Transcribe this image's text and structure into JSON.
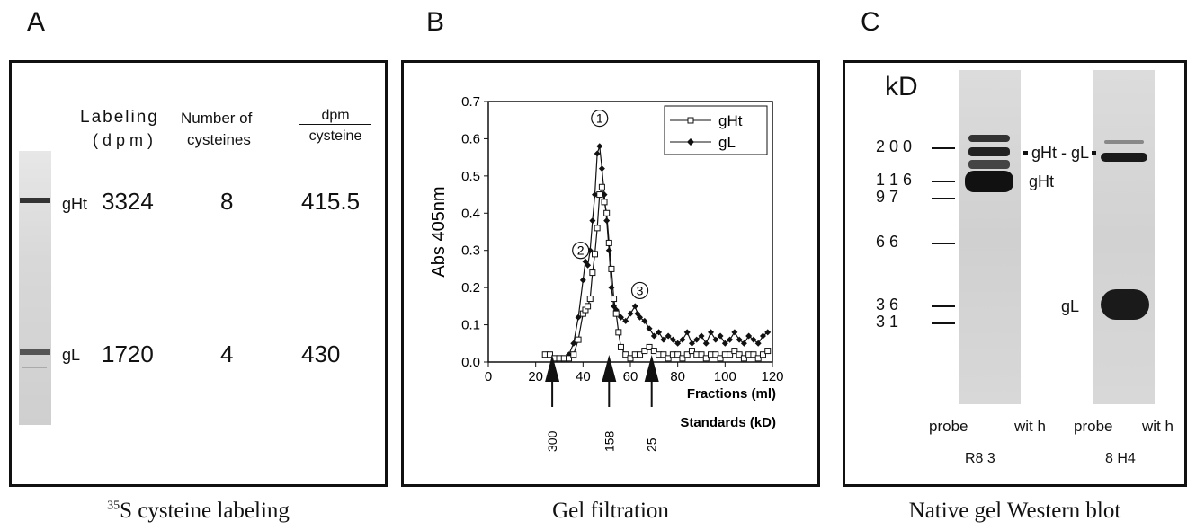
{
  "panels": {
    "a": {
      "letter": "A",
      "caption_sup": "35",
      "caption": "S cysteine labeling",
      "headers": {
        "labeling": "Labeling",
        "labeling_unit": "( d p m )",
        "number": "Number of",
        "number2": "cysteines",
        "dpm": "dpm",
        "dpm2": "cysteine"
      },
      "rows": [
        {
          "band": "gHt",
          "labeling": "3324",
          "cysteines": "8",
          "dpm_per_cys": "415.5"
        },
        {
          "band": "gL",
          "labeling": "1720",
          "cysteines": "4",
          "dpm_per_cys": "430"
        }
      ]
    },
    "b": {
      "letter": "B",
      "caption": "Gel   filtration",
      "peak_labels": [
        "1",
        "2",
        "3"
      ],
      "standards": [
        "300",
        "158",
        "25"
      ],
      "standards_label": "Standards  (kD)"
    },
    "c": {
      "letter": "C",
      "caption": "Native gel Western blot",
      "unit": "kD",
      "markers": [
        "2 0 0",
        "1 1 6",
        "9 7",
        "6 6",
        "3 6",
        "3 1"
      ],
      "band_labels": {
        "left_ght": "gHt",
        "complex": "gHt - gL",
        "gl": "gL"
      },
      "lane_labels": [
        {
          "top_a": "probe",
          "top_b": "wit h",
          "bottom": "R8 3"
        },
        {
          "top_a": "probe",
          "top_b": "wit h",
          "bottom": "8 H4"
        }
      ]
    }
  },
  "chart_data": {
    "type": "line",
    "title": "",
    "xlabel": "Fractions (ml)",
    "ylabel": "Abs 405nm",
    "xlim": [
      0,
      120
    ],
    "ylim": [
      0,
      0.7
    ],
    "xticks": [
      0,
      20,
      40,
      60,
      80,
      100,
      120
    ],
    "yticks": [
      0.0,
      0.1,
      0.2,
      0.3,
      0.4,
      0.5,
      0.6,
      0.7
    ],
    "legend_position": "top-right",
    "series": [
      {
        "name": "gHt",
        "marker": "open-square",
        "x": [
          24,
          26,
          28,
          30,
          32,
          34,
          36,
          38,
          40,
          41,
          42,
          43,
          44,
          45,
          46,
          47,
          48,
          49,
          50,
          51,
          52,
          53,
          54,
          55,
          56,
          58,
          60,
          62,
          64,
          66,
          68,
          70,
          72,
          74,
          76,
          78,
          80,
          82,
          84,
          86,
          88,
          90,
          92,
          94,
          96,
          98,
          100,
          102,
          104,
          106,
          108,
          110,
          112,
          114,
          116,
          118
        ],
        "y": [
          0.02,
          0.02,
          0.01,
          0.01,
          0.01,
          0.01,
          0.02,
          0.06,
          0.13,
          0.14,
          0.15,
          0.17,
          0.24,
          0.29,
          0.36,
          0.45,
          0.47,
          0.43,
          0.4,
          0.32,
          0.25,
          0.17,
          0.13,
          0.08,
          0.04,
          0.02,
          0.01,
          0.02,
          0.02,
          0.03,
          0.04,
          0.03,
          0.02,
          0.02,
          0.01,
          0.02,
          0.02,
          0.01,
          0.02,
          0.03,
          0.02,
          0.02,
          0.01,
          0.02,
          0.02,
          0.01,
          0.02,
          0.02,
          0.03,
          0.02,
          0.01,
          0.02,
          0.02,
          0.01,
          0.02,
          0.03
        ]
      },
      {
        "name": "gL",
        "marker": "filled-diamond",
        "x": [
          30,
          32,
          34,
          36,
          38,
          40,
          41,
          42,
          43,
          44,
          45,
          46,
          47,
          48,
          49,
          50,
          51,
          52,
          53,
          54,
          56,
          58,
          60,
          62,
          63,
          64,
          66,
          68,
          70,
          72,
          74,
          76,
          78,
          80,
          82,
          84,
          86,
          88,
          90,
          92,
          94,
          96,
          98,
          100,
          102,
          104,
          106,
          108,
          110,
          112,
          114,
          116,
          118
        ],
        "y": [
          0.01,
          0.01,
          0.02,
          0.05,
          0.12,
          0.22,
          0.27,
          0.26,
          0.3,
          0.38,
          0.45,
          0.56,
          0.58,
          0.52,
          0.45,
          0.38,
          0.3,
          0.2,
          0.15,
          0.14,
          0.12,
          0.11,
          0.13,
          0.15,
          0.13,
          0.12,
          0.11,
          0.09,
          0.07,
          0.08,
          0.06,
          0.07,
          0.06,
          0.05,
          0.06,
          0.08,
          0.05,
          0.06,
          0.07,
          0.05,
          0.08,
          0.06,
          0.07,
          0.05,
          0.06,
          0.08,
          0.06,
          0.05,
          0.07,
          0.06,
          0.05,
          0.07,
          0.08
        ]
      }
    ]
  }
}
